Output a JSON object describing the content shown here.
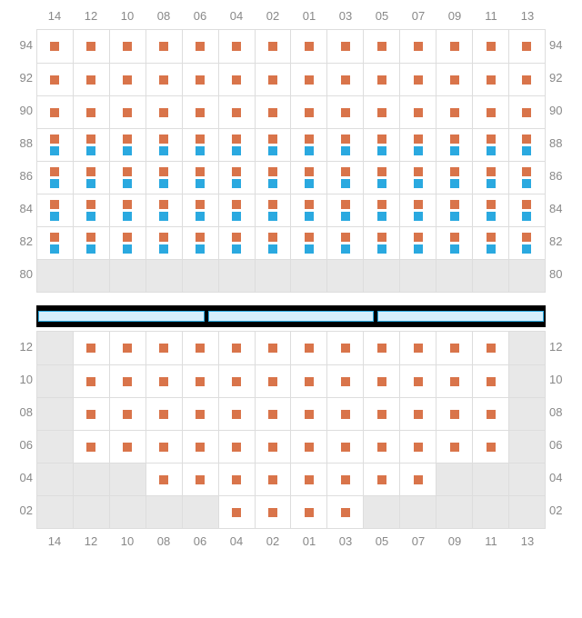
{
  "colors": {
    "orange": "#d9744a",
    "blue": "#2aa9e0",
    "dividerFill": "#d6eefb",
    "dividerBorder": "#2aa9e0",
    "gridLine": "#dddddd",
    "emptyCell": "#e8e8e8",
    "labelText": "#888888"
  },
  "columns": [
    "14",
    "12",
    "10",
    "08",
    "06",
    "04",
    "02",
    "01",
    "03",
    "05",
    "07",
    "09",
    "11",
    "13"
  ],
  "upper": {
    "rowLabels": [
      "94",
      "92",
      "90",
      "88",
      "86",
      "84",
      "82",
      "80"
    ],
    "rows": [
      {
        "label": "94",
        "cells": [
          {
            "t": "s",
            "c": "orange"
          },
          {
            "t": "s",
            "c": "orange"
          },
          {
            "t": "s",
            "c": "orange"
          },
          {
            "t": "s",
            "c": "orange"
          },
          {
            "t": "s",
            "c": "orange"
          },
          {
            "t": "s",
            "c": "orange"
          },
          {
            "t": "s",
            "c": "orange"
          },
          {
            "t": "s",
            "c": "orange"
          },
          {
            "t": "s",
            "c": "orange"
          },
          {
            "t": "s",
            "c": "orange"
          },
          {
            "t": "s",
            "c": "orange"
          },
          {
            "t": "s",
            "c": "orange"
          },
          {
            "t": "s",
            "c": "orange"
          },
          {
            "t": "s",
            "c": "orange"
          }
        ]
      },
      {
        "label": "92",
        "cells": [
          {
            "t": "s",
            "c": "orange"
          },
          {
            "t": "s",
            "c": "orange"
          },
          {
            "t": "s",
            "c": "orange"
          },
          {
            "t": "s",
            "c": "orange"
          },
          {
            "t": "s",
            "c": "orange"
          },
          {
            "t": "s",
            "c": "orange"
          },
          {
            "t": "s",
            "c": "orange"
          },
          {
            "t": "s",
            "c": "orange"
          },
          {
            "t": "s",
            "c": "orange"
          },
          {
            "t": "s",
            "c": "orange"
          },
          {
            "t": "s",
            "c": "orange"
          },
          {
            "t": "s",
            "c": "orange"
          },
          {
            "t": "s",
            "c": "orange"
          },
          {
            "t": "s",
            "c": "orange"
          }
        ]
      },
      {
        "label": "90",
        "cells": [
          {
            "t": "s",
            "c": "orange"
          },
          {
            "t": "s",
            "c": "orange"
          },
          {
            "t": "s",
            "c": "orange"
          },
          {
            "t": "s",
            "c": "orange"
          },
          {
            "t": "s",
            "c": "orange"
          },
          {
            "t": "s",
            "c": "orange"
          },
          {
            "t": "s",
            "c": "orange"
          },
          {
            "t": "s",
            "c": "orange"
          },
          {
            "t": "s",
            "c": "orange"
          },
          {
            "t": "s",
            "c": "orange"
          },
          {
            "t": "s",
            "c": "orange"
          },
          {
            "t": "s",
            "c": "orange"
          },
          {
            "t": "s",
            "c": "orange"
          },
          {
            "t": "s",
            "c": "orange"
          }
        ]
      },
      {
        "label": "88",
        "cells": [
          {
            "t": "d",
            "c1": "orange",
            "c2": "blue"
          },
          {
            "t": "d",
            "c1": "orange",
            "c2": "blue"
          },
          {
            "t": "d",
            "c1": "orange",
            "c2": "blue"
          },
          {
            "t": "d",
            "c1": "orange",
            "c2": "blue"
          },
          {
            "t": "d",
            "c1": "orange",
            "c2": "blue"
          },
          {
            "t": "d",
            "c1": "orange",
            "c2": "blue"
          },
          {
            "t": "d",
            "c1": "orange",
            "c2": "blue"
          },
          {
            "t": "d",
            "c1": "orange",
            "c2": "blue"
          },
          {
            "t": "d",
            "c1": "orange",
            "c2": "blue"
          },
          {
            "t": "d",
            "c1": "orange",
            "c2": "blue"
          },
          {
            "t": "d",
            "c1": "orange",
            "c2": "blue"
          },
          {
            "t": "d",
            "c1": "orange",
            "c2": "blue"
          },
          {
            "t": "d",
            "c1": "orange",
            "c2": "blue"
          },
          {
            "t": "d",
            "c1": "orange",
            "c2": "blue"
          }
        ]
      },
      {
        "label": "86",
        "cells": [
          {
            "t": "d",
            "c1": "orange",
            "c2": "blue"
          },
          {
            "t": "d",
            "c1": "orange",
            "c2": "blue"
          },
          {
            "t": "d",
            "c1": "orange",
            "c2": "blue"
          },
          {
            "t": "d",
            "c1": "orange",
            "c2": "blue"
          },
          {
            "t": "d",
            "c1": "orange",
            "c2": "blue"
          },
          {
            "t": "d",
            "c1": "orange",
            "c2": "blue"
          },
          {
            "t": "d",
            "c1": "orange",
            "c2": "blue"
          },
          {
            "t": "d",
            "c1": "orange",
            "c2": "blue"
          },
          {
            "t": "d",
            "c1": "orange",
            "c2": "blue"
          },
          {
            "t": "d",
            "c1": "orange",
            "c2": "blue"
          },
          {
            "t": "d",
            "c1": "orange",
            "c2": "blue"
          },
          {
            "t": "d",
            "c1": "orange",
            "c2": "blue"
          },
          {
            "t": "d",
            "c1": "orange",
            "c2": "blue"
          },
          {
            "t": "d",
            "c1": "orange",
            "c2": "blue"
          }
        ]
      },
      {
        "label": "84",
        "cells": [
          {
            "t": "d",
            "c1": "orange",
            "c2": "blue"
          },
          {
            "t": "d",
            "c1": "orange",
            "c2": "blue"
          },
          {
            "t": "d",
            "c1": "orange",
            "c2": "blue"
          },
          {
            "t": "d",
            "c1": "orange",
            "c2": "blue"
          },
          {
            "t": "d",
            "c1": "orange",
            "c2": "blue"
          },
          {
            "t": "d",
            "c1": "orange",
            "c2": "blue"
          },
          {
            "t": "d",
            "c1": "orange",
            "c2": "blue"
          },
          {
            "t": "d",
            "c1": "orange",
            "c2": "blue"
          },
          {
            "t": "d",
            "c1": "orange",
            "c2": "blue"
          },
          {
            "t": "d",
            "c1": "orange",
            "c2": "blue"
          },
          {
            "t": "d",
            "c1": "orange",
            "c2": "blue"
          },
          {
            "t": "d",
            "c1": "orange",
            "c2": "blue"
          },
          {
            "t": "d",
            "c1": "orange",
            "c2": "blue"
          },
          {
            "t": "d",
            "c1": "orange",
            "c2": "blue"
          }
        ]
      },
      {
        "label": "82",
        "cells": [
          {
            "t": "d",
            "c1": "orange",
            "c2": "blue"
          },
          {
            "t": "d",
            "c1": "orange",
            "c2": "blue"
          },
          {
            "t": "d",
            "c1": "orange",
            "c2": "blue"
          },
          {
            "t": "d",
            "c1": "orange",
            "c2": "blue"
          },
          {
            "t": "d",
            "c1": "orange",
            "c2": "blue"
          },
          {
            "t": "d",
            "c1": "orange",
            "c2": "blue"
          },
          {
            "t": "d",
            "c1": "orange",
            "c2": "blue"
          },
          {
            "t": "d",
            "c1": "orange",
            "c2": "blue"
          },
          {
            "t": "d",
            "c1": "orange",
            "c2": "blue"
          },
          {
            "t": "d",
            "c1": "orange",
            "c2": "blue"
          },
          {
            "t": "d",
            "c1": "orange",
            "c2": "blue"
          },
          {
            "t": "d",
            "c1": "orange",
            "c2": "blue"
          },
          {
            "t": "d",
            "c1": "orange",
            "c2": "blue"
          },
          {
            "t": "d",
            "c1": "orange",
            "c2": "blue"
          }
        ]
      },
      {
        "label": "80",
        "cells": [
          {
            "t": "e"
          },
          {
            "t": "e"
          },
          {
            "t": "e"
          },
          {
            "t": "e"
          },
          {
            "t": "e"
          },
          {
            "t": "e"
          },
          {
            "t": "e"
          },
          {
            "t": "e"
          },
          {
            "t": "e"
          },
          {
            "t": "e"
          },
          {
            "t": "e"
          },
          {
            "t": "e"
          },
          {
            "t": "e"
          },
          {
            "t": "e"
          }
        ]
      }
    ]
  },
  "divider": {
    "segments": 3
  },
  "lower": {
    "rowLabels": [
      "12",
      "10",
      "08",
      "06",
      "04",
      "02"
    ],
    "rows": [
      {
        "label": "12",
        "cells": [
          {
            "t": "e"
          },
          {
            "t": "s",
            "c": "orange"
          },
          {
            "t": "s",
            "c": "orange"
          },
          {
            "t": "s",
            "c": "orange"
          },
          {
            "t": "s",
            "c": "orange"
          },
          {
            "t": "s",
            "c": "orange"
          },
          {
            "t": "s",
            "c": "orange"
          },
          {
            "t": "s",
            "c": "orange"
          },
          {
            "t": "s",
            "c": "orange"
          },
          {
            "t": "s",
            "c": "orange"
          },
          {
            "t": "s",
            "c": "orange"
          },
          {
            "t": "s",
            "c": "orange"
          },
          {
            "t": "s",
            "c": "orange"
          },
          {
            "t": "e"
          }
        ]
      },
      {
        "label": "10",
        "cells": [
          {
            "t": "e"
          },
          {
            "t": "s",
            "c": "orange"
          },
          {
            "t": "s",
            "c": "orange"
          },
          {
            "t": "s",
            "c": "orange"
          },
          {
            "t": "s",
            "c": "orange"
          },
          {
            "t": "s",
            "c": "orange"
          },
          {
            "t": "s",
            "c": "orange"
          },
          {
            "t": "s",
            "c": "orange"
          },
          {
            "t": "s",
            "c": "orange"
          },
          {
            "t": "s",
            "c": "orange"
          },
          {
            "t": "s",
            "c": "orange"
          },
          {
            "t": "s",
            "c": "orange"
          },
          {
            "t": "s",
            "c": "orange"
          },
          {
            "t": "e"
          }
        ]
      },
      {
        "label": "08",
        "cells": [
          {
            "t": "e"
          },
          {
            "t": "s",
            "c": "orange"
          },
          {
            "t": "s",
            "c": "orange"
          },
          {
            "t": "s",
            "c": "orange"
          },
          {
            "t": "s",
            "c": "orange"
          },
          {
            "t": "s",
            "c": "orange"
          },
          {
            "t": "s",
            "c": "orange"
          },
          {
            "t": "s",
            "c": "orange"
          },
          {
            "t": "s",
            "c": "orange"
          },
          {
            "t": "s",
            "c": "orange"
          },
          {
            "t": "s",
            "c": "orange"
          },
          {
            "t": "s",
            "c": "orange"
          },
          {
            "t": "s",
            "c": "orange"
          },
          {
            "t": "e"
          }
        ]
      },
      {
        "label": "06",
        "cells": [
          {
            "t": "e"
          },
          {
            "t": "s",
            "c": "orange"
          },
          {
            "t": "s",
            "c": "orange"
          },
          {
            "t": "s",
            "c": "orange"
          },
          {
            "t": "s",
            "c": "orange"
          },
          {
            "t": "s",
            "c": "orange"
          },
          {
            "t": "s",
            "c": "orange"
          },
          {
            "t": "s",
            "c": "orange"
          },
          {
            "t": "s",
            "c": "orange"
          },
          {
            "t": "s",
            "c": "orange"
          },
          {
            "t": "s",
            "c": "orange"
          },
          {
            "t": "s",
            "c": "orange"
          },
          {
            "t": "s",
            "c": "orange"
          },
          {
            "t": "e"
          }
        ]
      },
      {
        "label": "04",
        "cells": [
          {
            "t": "e"
          },
          {
            "t": "e"
          },
          {
            "t": "e"
          },
          {
            "t": "s",
            "c": "orange"
          },
          {
            "t": "s",
            "c": "orange"
          },
          {
            "t": "s",
            "c": "orange"
          },
          {
            "t": "s",
            "c": "orange"
          },
          {
            "t": "s",
            "c": "orange"
          },
          {
            "t": "s",
            "c": "orange"
          },
          {
            "t": "s",
            "c": "orange"
          },
          {
            "t": "s",
            "c": "orange"
          },
          {
            "t": "e"
          },
          {
            "t": "e"
          },
          {
            "t": "e"
          }
        ]
      },
      {
        "label": "02",
        "cells": [
          {
            "t": "e"
          },
          {
            "t": "e"
          },
          {
            "t": "e"
          },
          {
            "t": "e"
          },
          {
            "t": "e"
          },
          {
            "t": "s",
            "c": "orange"
          },
          {
            "t": "s",
            "c": "orange"
          },
          {
            "t": "s",
            "c": "orange"
          },
          {
            "t": "s",
            "c": "orange"
          },
          {
            "t": "e"
          },
          {
            "t": "e"
          },
          {
            "t": "e"
          },
          {
            "t": "e"
          },
          {
            "t": "e"
          }
        ]
      }
    ]
  },
  "layout": {
    "upperColLabelsTop": 10,
    "upperGridTop": 32,
    "upperRowHeight": 36,
    "dividerTop": 336,
    "lowerGridTop": 364,
    "lowerColLabelsTop": 588
  }
}
